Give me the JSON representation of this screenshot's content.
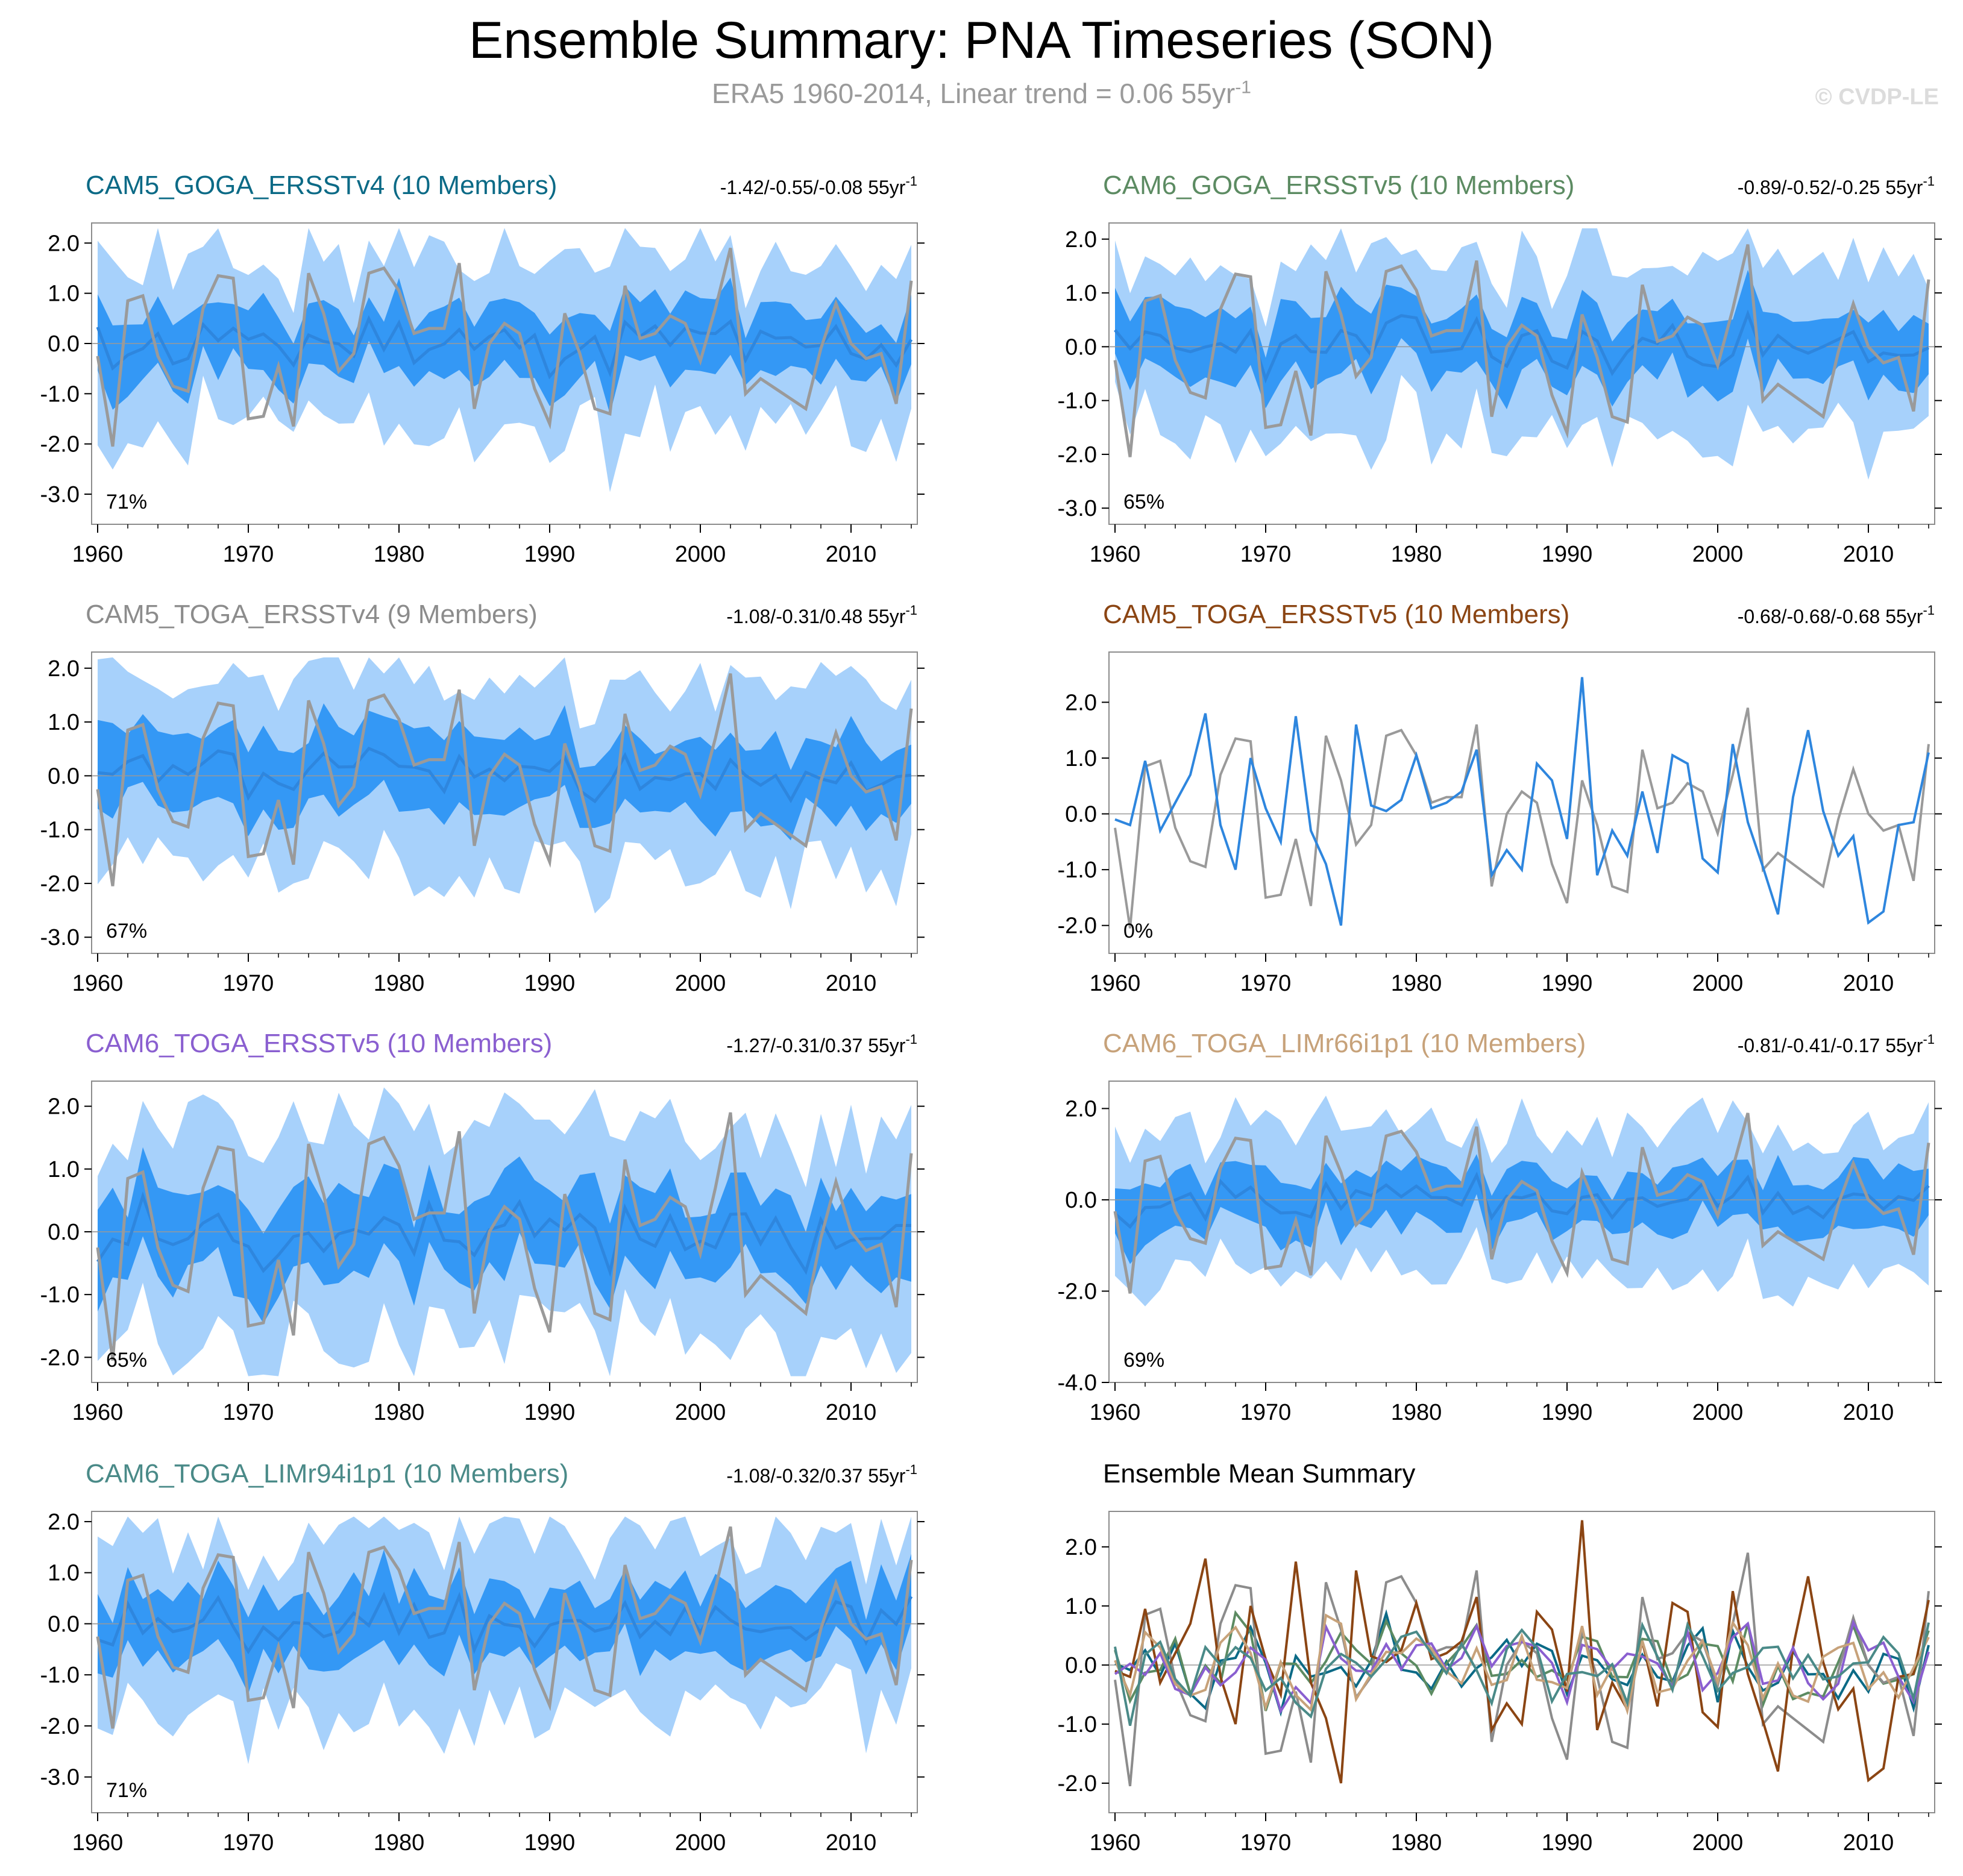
{
  "title": "Ensemble Summary: PNA Timeseries (SON)",
  "subtitle": "ERA5 1960-2014, Linear trend = 0.06 55yr",
  "subtitle_sup": "-1",
  "watermark": "© CVDP-LE",
  "colors": {
    "band_outer": "#a7d1fb",
    "band_inner": "#3498f5",
    "mean_line": "#2e86de",
    "obs_line": "#9a9a9a",
    "zero_line": "#999999"
  },
  "chart_data": [
    {
      "type": "line",
      "title": "CAM5_GOGA_ERSSTv4 (10 Members)",
      "title_color": "#0b6a86",
      "trend": "-1.42/-0.55/-0.08 55yr",
      "trend_sup": "-1",
      "percent": "71%",
      "ylim": [
        -3.6,
        2.4
      ],
      "yticks": [
        -3.0,
        -2.0,
        -1.0,
        0.0,
        1.0,
        2.0
      ],
      "ytick_labels": [
        "-3.0",
        "-2.0",
        "-1.0",
        "0.0",
        "1.0",
        "2.0"
      ],
      "xlim": [
        1960,
        2014
      ],
      "xticks": [
        1960,
        1970,
        1980,
        1990,
        2000,
        2010
      ],
      "xtick_labels": [
        "1960",
        "1970",
        "1980",
        "1990",
        "2000",
        "2010"
      ],
      "seed": 11,
      "mean_amp": 0.45,
      "inner": 0.65,
      "outer": 1.3
    },
    {
      "type": "line",
      "title": "CAM6_GOGA_ERSSTv5 (10 Members)",
      "title_color": "#5c8b62",
      "trend": "-0.89/-0.52/-0.25 55yr",
      "trend_sup": "-1",
      "percent": "65%",
      "ylim": [
        -3.3,
        2.3
      ],
      "yticks": [
        -3.0,
        -2.0,
        -1.0,
        0.0,
        1.0,
        2.0
      ],
      "ytick_labels": [
        "-3.0",
        "-2.0",
        "-1.0",
        "0.0",
        "1.0",
        "2.0"
      ],
      "xlim": [
        1960,
        2014
      ],
      "xticks": [
        1960,
        1970,
        1980,
        1990,
        2000,
        2010
      ],
      "xtick_labels": [
        "1960",
        "1970",
        "1980",
        "1990",
        "2000",
        "2010"
      ],
      "seed": 23,
      "mean_amp": 0.4,
      "inner": 0.6,
      "outer": 1.25
    },
    {
      "type": "line",
      "title": "CAM5_TOGA_ERSSTv4 (9 Members)",
      "title_color": "#8c8c8c",
      "trend": "-1.08/-0.31/0.48 55yr",
      "trend_sup": "-1",
      "percent": "67%",
      "ylim": [
        -3.3,
        2.3
      ],
      "yticks": [
        -3.0,
        -2.0,
        -1.0,
        0.0,
        1.0,
        2.0
      ],
      "ytick_labels": [
        "-3.0",
        "-2.0",
        "-1.0",
        "0.0",
        "1.0",
        "2.0"
      ],
      "xlim": [
        1960,
        2014
      ],
      "xticks": [
        1960,
        1970,
        1980,
        1990,
        2000,
        2010
      ],
      "xtick_labels": [
        "1960",
        "1970",
        "1980",
        "1990",
        "2000",
        "2010"
      ],
      "seed": 37,
      "mean_amp": 0.35,
      "inner": 0.7,
      "outer": 1.35
    },
    {
      "type": "line",
      "title": "CAM5_TOGA_ERSSTv5 (10 Members)",
      "title_color": "#8b4513",
      "trend": "-0.68/-0.68/-0.68 55yr",
      "trend_sup": "-1",
      "percent": "0%",
      "single_member": true,
      "ylim": [
        -2.5,
        2.9
      ],
      "yticks": [
        -2.0,
        -1.0,
        0.0,
        1.0,
        2.0
      ],
      "ytick_labels": [
        "-2.0",
        "-1.0",
        "0.0",
        "1.0",
        "2.0"
      ],
      "xlim": [
        1960,
        2014
      ],
      "xticks": [
        1960,
        1970,
        1980,
        1990,
        2000,
        2010
      ],
      "xtick_labels": [
        "1960",
        "1970",
        "1980",
        "1990",
        "2000",
        "2010"
      ],
      "seed": 0,
      "mean_amp": 0,
      "inner": 0,
      "outer": 0
    },
    {
      "type": "line",
      "title": "CAM6_TOGA_ERSSTv5 (10 Members)",
      "title_color": "#8a5fd0",
      "trend": "-1.27/-0.31/0.37 55yr",
      "trend_sup": "-1",
      "percent": "65%",
      "ylim": [
        -2.4,
        2.4
      ],
      "yticks": [
        -2.0,
        -1.0,
        0.0,
        1.0,
        2.0
      ],
      "ytick_labels": [
        "-2.0",
        "-1.0",
        "0.0",
        "1.0",
        "2.0"
      ],
      "xlim": [
        1960,
        2014
      ],
      "xticks": [
        1960,
        1970,
        1980,
        1990,
        2000,
        2010
      ],
      "xtick_labels": [
        "1960",
        "1970",
        "1980",
        "1990",
        "2000",
        "2010"
      ],
      "seed": 53,
      "mean_amp": 0.45,
      "inner": 0.65,
      "outer": 1.3
    },
    {
      "type": "line",
      "title": "CAM6_TOGA_LIMr66i1p1 (10 Members)",
      "title_color": "#c7a27a",
      "trend": "-0.81/-0.41/-0.17 55yr",
      "trend_sup": "-1",
      "percent": "69%",
      "ylim": [
        -4.0,
        2.6
      ],
      "yticks": [
        -4.0,
        -2.0,
        0.0,
        2.0
      ],
      "ytick_labels": [
        "-4.0",
        "-2.0",
        "0.0",
        "2.0"
      ],
      "xlim": [
        1960,
        2014
      ],
      "xticks": [
        1960,
        1970,
        1980,
        1990,
        2000,
        2010
      ],
      "xtick_labels": [
        "1960",
        "1970",
        "1980",
        "1990",
        "2000",
        "2010"
      ],
      "seed": 71,
      "mean_amp": 0.3,
      "inner": 0.6,
      "outer": 1.3
    },
    {
      "type": "line",
      "title": "CAM6_TOGA_LIMr94i1p1 (10 Members)",
      "title_color": "#4a8a88",
      "trend": "-1.08/-0.32/0.37 55yr",
      "trend_sup": "-1",
      "percent": "71%",
      "ylim": [
        -3.7,
        2.2
      ],
      "yticks": [
        -3.0,
        -2.0,
        -1.0,
        0.0,
        1.0,
        2.0
      ],
      "ytick_labels": [
        "-3.0",
        "-2.0",
        "-1.0",
        "0.0",
        "1.0",
        "2.0"
      ],
      "xlim": [
        1960,
        2014
      ],
      "xticks": [
        1960,
        1970,
        1980,
        1990,
        2000,
        2010
      ],
      "xtick_labels": [
        "1960",
        "1970",
        "1980",
        "1990",
        "2000",
        "2010"
      ],
      "seed": 89,
      "mean_amp": 0.35,
      "inner": 0.65,
      "outer": 1.3
    },
    {
      "type": "line",
      "title": "Ensemble Mean Summary",
      "title_color": "#000000",
      "summary": true,
      "ylim": [
        -2.5,
        2.6
      ],
      "yticks": [
        -2.0,
        -1.0,
        0.0,
        1.0,
        2.0
      ],
      "ytick_labels": [
        "-2.0",
        "-1.0",
        "0.0",
        "1.0",
        "2.0"
      ],
      "xlim": [
        1960,
        2014
      ],
      "xticks": [
        1960,
        1970,
        1980,
        1990,
        2000,
        2010
      ],
      "xtick_labels": [
        "1960",
        "1970",
        "1980",
        "1990",
        "2000",
        "2010"
      ],
      "series_colors": [
        "#0b6a86",
        "#5c8b62",
        "#8c8c8c",
        "#8b4513",
        "#8a5fd0",
        "#c7a27a",
        "#4a8a88"
      ]
    }
  ],
  "obs_series": {
    "name": "ERA5",
    "years": [
      1960,
      1961,
      1962,
      1963,
      1964,
      1965,
      1966,
      1967,
      1968,
      1969,
      1970,
      1971,
      1972,
      1973,
      1974,
      1975,
      1976,
      1977,
      1978,
      1979,
      1980,
      1981,
      1982,
      1983,
      1984,
      1985,
      1986,
      1987,
      1988,
      1989,
      1990,
      1991,
      1992,
      1993,
      1994,
      1995,
      1996,
      1997,
      1998,
      1999,
      2000,
      2001,
      2002,
      2003,
      2004,
      2005,
      2006,
      2007,
      2008,
      2009,
      2010,
      2011,
      2012,
      2013,
      2014
    ],
    "values": [
      -0.25,
      -2.05,
      0.85,
      0.95,
      -0.25,
      -0.85,
      -0.95,
      0.7,
      1.35,
      1.3,
      -1.5,
      -1.45,
      -0.45,
      -1.65,
      1.4,
      0.6,
      -0.55,
      -0.2,
      1.4,
      1.5,
      1.05,
      0.2,
      0.3,
      0.3,
      1.6,
      -1.3,
      0.0,
      0.4,
      0.2,
      -0.9,
      -1.6,
      0.6,
      -0.2,
      -1.3,
      -1.4,
      1.15,
      0.1,
      0.2,
      0.55,
      0.4,
      -0.35,
      0.7,
      1.9,
      -1.0,
      -0.7,
      -0.9,
      -1.1,
      -1.3,
      -0.1,
      0.8,
      0.0,
      -0.3,
      -0.2,
      -1.2,
      1.25
    ]
  },
  "single_member_series": {
    "years": [
      1960,
      1961,
      1962,
      1963,
      1964,
      1965,
      1966,
      1967,
      1968,
      1969,
      1970,
      1971,
      1972,
      1973,
      1974,
      1975,
      1976,
      1977,
      1978,
      1979,
      1980,
      1981,
      1982,
      1983,
      1984,
      1985,
      1986,
      1987,
      1988,
      1989,
      1990,
      1991,
      1992,
      1993,
      1994,
      1995,
      1996,
      1997,
      1998,
      1999,
      2000,
      2001,
      2002,
      2003,
      2004,
      2005,
      2006,
      2007,
      2008,
      2009,
      2010,
      2011,
      2012,
      2013,
      2014
    ],
    "values": [
      -0.1,
      -0.2,
      0.95,
      -0.3,
      0.2,
      0.7,
      1.8,
      -0.2,
      -1.0,
      1.0,
      0.1,
      -0.5,
      1.75,
      -0.3,
      -0.9,
      -2.0,
      1.6,
      0.15,
      0.05,
      0.25,
      1.05,
      0.1,
      0.2,
      0.4,
      1.15,
      -1.1,
      -0.65,
      -1.0,
      0.9,
      0.6,
      -0.45,
      2.45,
      -1.1,
      -0.3,
      -0.75,
      0.4,
      -0.7,
      1.05,
      0.9,
      -0.8,
      -1.05,
      1.25,
      -0.15,
      -0.95,
      -1.8,
      0.3,
      1.5,
      0.05,
      -0.75,
      -0.4,
      -1.95,
      -1.75,
      -0.2,
      -0.15,
      1.1
    ]
  }
}
